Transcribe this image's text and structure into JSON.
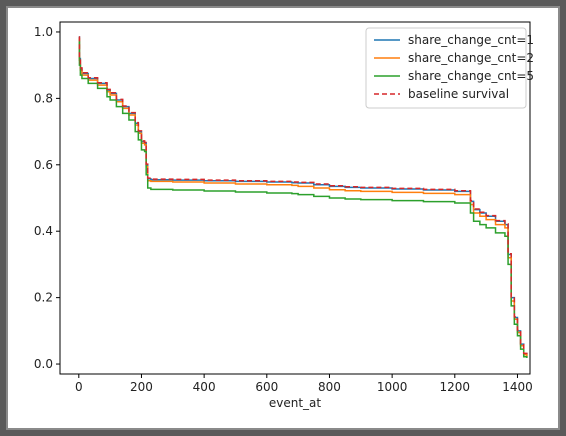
{
  "chart_data": {
    "type": "line",
    "title": "",
    "xlabel": "event_at",
    "ylabel": "",
    "xlim": [
      -60,
      1440
    ],
    "ylim": [
      -0.03,
      1.03
    ],
    "xticks": [
      0,
      200,
      400,
      600,
      800,
      1000,
      1200,
      1400
    ],
    "xtick_labels": [
      "0",
      "200",
      "400",
      "600",
      "800",
      "1000",
      "1200",
      "1400"
    ],
    "yticks": [
      0.0,
      0.2,
      0.4,
      0.6,
      0.8,
      1.0
    ],
    "ytick_labels": [
      "0.0",
      "0.2",
      "0.4",
      "0.6",
      "0.8",
      "1.0"
    ],
    "grid": false,
    "legend_position": "top-right",
    "series": [
      {
        "name": "share_change_cnt=1",
        "color": "#1f77b4",
        "dash": "solid",
        "x": [
          0,
          2,
          5,
          10,
          30,
          60,
          90,
          100,
          120,
          140,
          160,
          180,
          190,
          200,
          210,
          215,
          220,
          230,
          300,
          400,
          500,
          600,
          680,
          700,
          750,
          800,
          850,
          900,
          1000,
          1100,
          1200,
          1240,
          1250,
          1260,
          1280,
          1300,
          1330,
          1360,
          1370,
          1380,
          1390,
          1400,
          1410,
          1420,
          1430
        ],
        "y": [
          0.985,
          0.92,
          0.89,
          0.875,
          0.86,
          0.845,
          0.825,
          0.815,
          0.795,
          0.775,
          0.755,
          0.725,
          0.7,
          0.67,
          0.665,
          0.6,
          0.558,
          0.555,
          0.554,
          0.552,
          0.55,
          0.548,
          0.546,
          0.545,
          0.54,
          0.535,
          0.532,
          0.53,
          0.527,
          0.524,
          0.52,
          0.52,
          0.49,
          0.465,
          0.455,
          0.445,
          0.43,
          0.42,
          0.33,
          0.2,
          0.14,
          0.1,
          0.06,
          0.03,
          0.025
        ]
      },
      {
        "name": "share_change_cnt=2",
        "color": "#ff7f0e",
        "dash": "solid",
        "x": [
          0,
          2,
          5,
          10,
          30,
          60,
          90,
          100,
          120,
          140,
          160,
          180,
          190,
          200,
          210,
          215,
          220,
          230,
          300,
          400,
          500,
          600,
          680,
          700,
          750,
          800,
          850,
          900,
          1000,
          1100,
          1200,
          1240,
          1250,
          1260,
          1280,
          1300,
          1330,
          1360,
          1370,
          1380,
          1390,
          1400,
          1410,
          1420,
          1430
        ],
        "y": [
          0.98,
          0.915,
          0.885,
          0.87,
          0.855,
          0.84,
          0.82,
          0.81,
          0.79,
          0.77,
          0.75,
          0.72,
          0.695,
          0.665,
          0.66,
          0.595,
          0.552,
          0.55,
          0.548,
          0.545,
          0.542,
          0.54,
          0.538,
          0.535,
          0.53,
          0.525,
          0.522,
          0.52,
          0.517,
          0.514,
          0.51,
          0.51,
          0.48,
          0.455,
          0.445,
          0.435,
          0.42,
          0.41,
          0.32,
          0.19,
          0.135,
          0.095,
          0.055,
          0.028,
          0.022
        ]
      },
      {
        "name": "share_change_cnt=5",
        "color": "#2ca02c",
        "dash": "solid",
        "x": [
          0,
          2,
          5,
          10,
          30,
          60,
          90,
          100,
          120,
          140,
          160,
          180,
          190,
          200,
          210,
          215,
          220,
          230,
          300,
          400,
          500,
          600,
          680,
          700,
          750,
          800,
          850,
          900,
          1000,
          1100,
          1200,
          1240,
          1250,
          1260,
          1280,
          1300,
          1330,
          1360,
          1370,
          1380,
          1390,
          1400,
          1410,
          1420,
          1430
        ],
        "y": [
          0.97,
          0.9,
          0.87,
          0.86,
          0.845,
          0.83,
          0.805,
          0.795,
          0.775,
          0.755,
          0.735,
          0.7,
          0.675,
          0.645,
          0.64,
          0.57,
          0.53,
          0.526,
          0.524,
          0.521,
          0.518,
          0.515,
          0.513,
          0.51,
          0.505,
          0.5,
          0.497,
          0.495,
          0.492,
          0.489,
          0.485,
          0.485,
          0.455,
          0.43,
          0.42,
          0.41,
          0.395,
          0.385,
          0.3,
          0.175,
          0.12,
          0.085,
          0.045,
          0.022,
          0.018
        ]
      },
      {
        "name": "baseline survival",
        "color": "#d62728",
        "dash": "dashed",
        "x": [
          0,
          2,
          5,
          10,
          30,
          60,
          90,
          100,
          120,
          140,
          160,
          180,
          190,
          200,
          210,
          215,
          220,
          230,
          300,
          400,
          500,
          600,
          680,
          700,
          750,
          800,
          850,
          900,
          1000,
          1100,
          1200,
          1240,
          1250,
          1260,
          1280,
          1300,
          1330,
          1360,
          1370,
          1380,
          1390,
          1400,
          1410,
          1420,
          1430
        ],
        "y": [
          0.985,
          0.922,
          0.892,
          0.877,
          0.862,
          0.847,
          0.827,
          0.817,
          0.797,
          0.777,
          0.757,
          0.727,
          0.702,
          0.672,
          0.667,
          0.602,
          0.56,
          0.557,
          0.556,
          0.554,
          0.552,
          0.55,
          0.548,
          0.547,
          0.542,
          0.537,
          0.534,
          0.532,
          0.529,
          0.526,
          0.522,
          0.522,
          0.492,
          0.467,
          0.457,
          0.447,
          0.432,
          0.422,
          0.332,
          0.202,
          0.142,
          0.102,
          0.062,
          0.032,
          0.027
        ]
      }
    ]
  }
}
